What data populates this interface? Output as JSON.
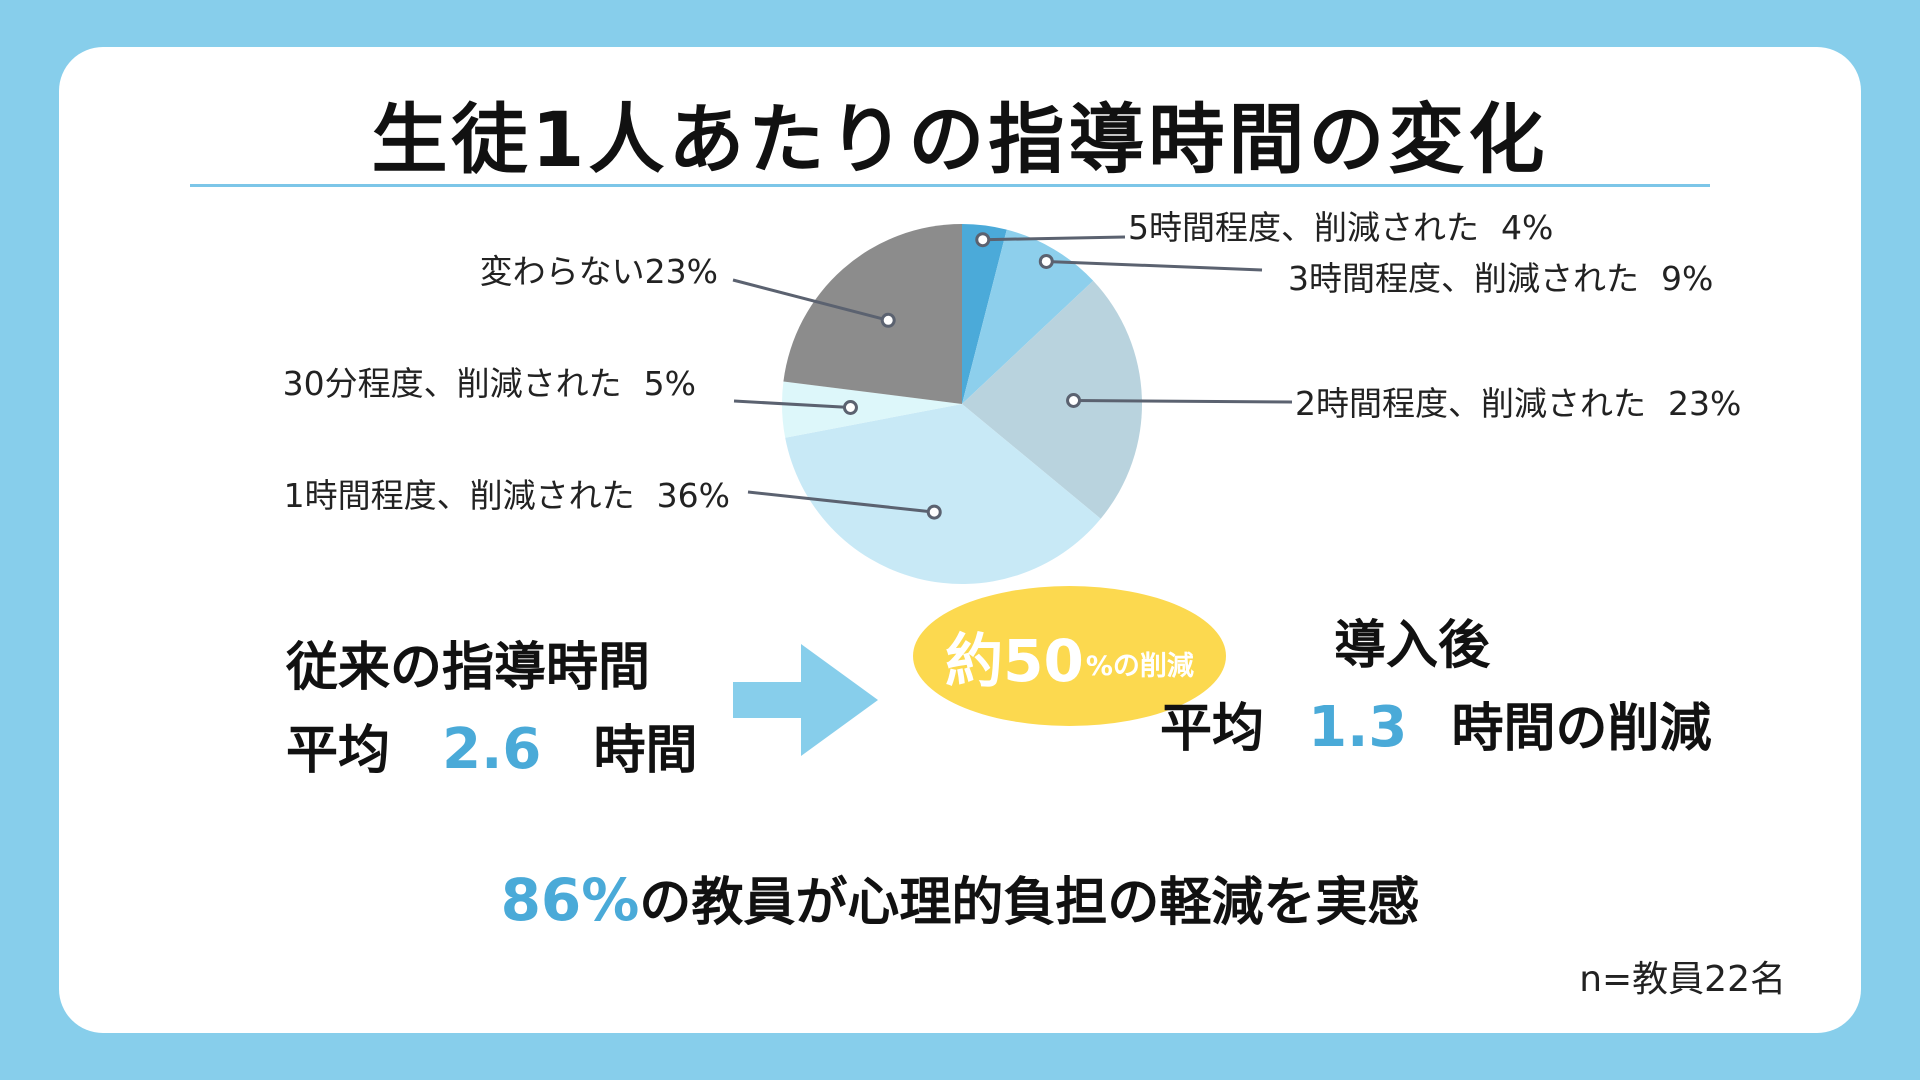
{
  "chart_data": {
    "type": "pie",
    "title": "生徒1人あたりの指導時間の変化",
    "slices": [
      {
        "label": "5時間程度、削減された",
        "value": 4,
        "value_text": "4%",
        "color": "#4BAAD9"
      },
      {
        "label": "3時間程度、削減された",
        "value": 9,
        "value_text": "9%",
        "color": "#8DCFEC"
      },
      {
        "label": "2時間程度、削減された",
        "value": 23,
        "value_text": "23%",
        "color": "#B9D3DE"
      },
      {
        "label": "1時間程度、削減された",
        "value": 36,
        "value_text": "36%",
        "color": "#C8E9F6"
      },
      {
        "label": "30分程度、削減された",
        "value": 5,
        "value_text": "5%",
        "color": "#DDF7FA"
      },
      {
        "label": "変わらない",
        "value": 23,
        "value_text": "23%",
        "color": "#8C8C8C"
      }
    ],
    "legend": "none"
  },
  "before": {
    "heading": "従来の指導時間",
    "avg_prefix": "平均",
    "value": "2.6",
    "unit": "時間"
  },
  "after": {
    "heading": "導入後",
    "avg_prefix": "平均",
    "value": "1.3",
    "unit": "時間の削減"
  },
  "badge": {
    "main": "約50",
    "sub": "%の削減",
    "color": "#FCD94F"
  },
  "summary": {
    "pct": "86%",
    "text": "の教員が心理的負担の軽減を実感"
  },
  "note": "n=教員22名",
  "colors": {
    "background": "#87CEEB",
    "accent": "#4AAAD8",
    "leader_line": "#5B6270"
  }
}
